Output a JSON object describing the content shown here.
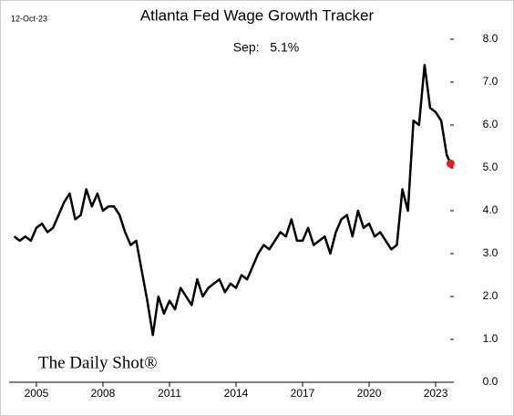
{
  "chart_data": {
    "type": "line",
    "title": "Atlanta Fed Wage Growth Tracker",
    "date_stamp": "12-Oct-23",
    "annotation": "Sep:   5.1%",
    "watermark": "The Daily Shot®",
    "x": [
      2004,
      2004.25,
      2004.5,
      2004.75,
      2005,
      2005.25,
      2005.5,
      2005.75,
      2006,
      2006.25,
      2006.5,
      2006.75,
      2007,
      2007.25,
      2007.5,
      2007.75,
      2008,
      2008.25,
      2008.5,
      2008.75,
      2009,
      2009.25,
      2009.5,
      2009.75,
      2010,
      2010.25,
      2010.5,
      2010.75,
      2011,
      2011.25,
      2011.5,
      2011.75,
      2012,
      2012.25,
      2012.5,
      2012.75,
      2013,
      2013.25,
      2013.5,
      2013.75,
      2014,
      2014.25,
      2014.5,
      2014.75,
      2015,
      2015.25,
      2015.5,
      2015.75,
      2016,
      2016.25,
      2016.5,
      2016.75,
      2017,
      2017.25,
      2017.5,
      2017.75,
      2018,
      2018.25,
      2018.5,
      2018.75,
      2019,
      2019.25,
      2019.5,
      2019.75,
      2020,
      2020.25,
      2020.5,
      2020.75,
      2021,
      2021.25,
      2021.5,
      2021.75,
      2022,
      2022.25,
      2022.5,
      2022.75,
      2023,
      2023.25,
      2023.5,
      2023.67
    ],
    "series": [
      {
        "color": "#000000",
        "marker_color": "#e02020",
        "values": [
          3.4,
          3.3,
          3.4,
          3.3,
          3.6,
          3.7,
          3.5,
          3.6,
          3.9,
          4.2,
          4.4,
          3.8,
          3.9,
          4.5,
          4.1,
          4.4,
          4.0,
          4.1,
          4.1,
          3.9,
          3.5,
          3.2,
          3.3,
          2.6,
          1.9,
          1.1,
          2.0,
          1.6,
          1.9,
          1.7,
          2.2,
          2.0,
          1.8,
          2.4,
          2.0,
          2.2,
          2.3,
          2.4,
          2.1,
          2.3,
          2.2,
          2.5,
          2.4,
          2.7,
          3.0,
          3.2,
          3.1,
          3.3,
          3.5,
          3.4,
          3.8,
          3.3,
          3.3,
          3.6,
          3.2,
          3.3,
          3.4,
          3.0,
          3.5,
          3.8,
          3.9,
          3.4,
          4.0,
          3.6,
          3.7,
          3.4,
          3.5,
          3.3,
          3.1,
          3.2,
          4.5,
          4.0,
          6.1,
          6.0,
          7.4,
          6.4,
          6.3,
          6.1,
          5.3,
          5.1
        ]
      }
    ],
    "xlim": [
      2003.77,
      2023.82
    ],
    "xticks": [
      2005,
      2008,
      2011,
      2014,
      2017,
      2020,
      2023
    ],
    "ylim": [
      0,
      8
    ],
    "yticks": [
      {
        "value": 0,
        "label": "0.0"
      },
      {
        "value": 1,
        "label": "1.0"
      },
      {
        "value": 2,
        "label": "2.0"
      },
      {
        "value": 3,
        "label": "3.0"
      },
      {
        "value": 4,
        "label": "4.0"
      },
      {
        "value": 5,
        "label": "5.0"
      },
      {
        "value": 6,
        "label": "6.0"
      },
      {
        "value": 7,
        "label": "7.0"
      },
      {
        "value": 8,
        "label": "8.0"
      }
    ]
  }
}
